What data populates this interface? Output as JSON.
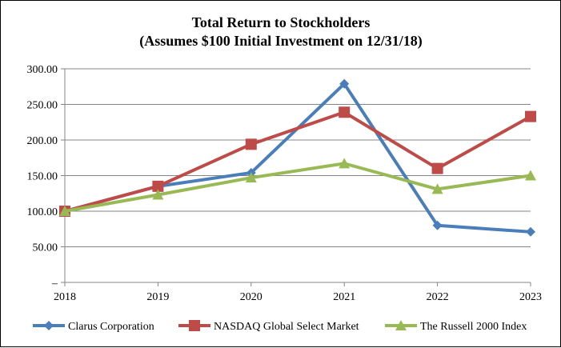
{
  "chart_data": {
    "type": "line",
    "title": "Total Return to Stockholders",
    "subtitle": "(Assumes $100 Initial Investment on 12/31/18)",
    "xlabel": "",
    "ylabel": "",
    "categories": [
      "2018",
      "2019",
      "2020",
      "2021",
      "2022",
      "2023"
    ],
    "ylim": [
      0,
      300
    ],
    "yticks": [
      0,
      50,
      100,
      150,
      200,
      250,
      300
    ],
    "ytick_labels": [
      "–",
      "50.00",
      "100.00",
      "150.00",
      "200.00",
      "250.00",
      "300.00"
    ],
    "grid": "horizontal",
    "legend_position": "bottom",
    "series": [
      {
        "name": "Clarus Corporation",
        "color": "#4a7ebb",
        "marker": "diamond",
        "values": [
          100,
          135,
          154,
          279,
          80,
          71
        ]
      },
      {
        "name": "NASDAQ Global Select Market",
        "color": "#be4b48",
        "marker": "square",
        "values": [
          100,
          135,
          194,
          239,
          160,
          233
        ]
      },
      {
        "name": "The Russell 2000 Index",
        "color": "#98b954",
        "marker": "triangle",
        "values": [
          100,
          123,
          147,
          167,
          131,
          150
        ]
      }
    ]
  }
}
